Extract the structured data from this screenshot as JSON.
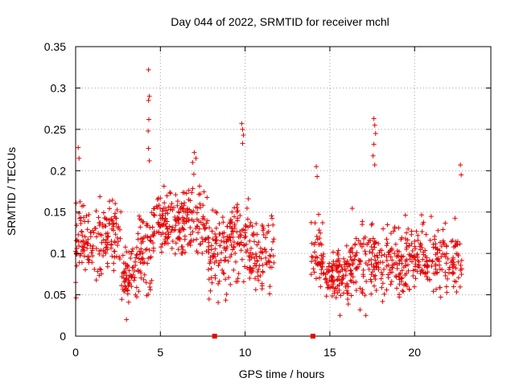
{
  "chart_data": {
    "type": "scatter",
    "title": "Day 044 of 2022, SRMTID for receiver mchl",
    "xlabel": "GPS time / hours",
    "ylabel": "SRMTID / TECUs",
    "xlim": [
      0,
      24.5
    ],
    "ylim": [
      0,
      0.35
    ],
    "x_ticks": [
      0,
      5,
      10,
      15,
      20
    ],
    "x_tick_labels": [
      "0",
      "5",
      "10",
      "15",
      "20"
    ],
    "y_ticks": [
      0,
      0.05,
      0.1,
      0.15,
      0.2,
      0.25,
      0.3,
      0.35
    ],
    "y_tick_labels": [
      "0",
      "0.05",
      "0.1",
      "0.15",
      "0.2",
      "0.25",
      "0.3",
      "0.35"
    ],
    "grid": true,
    "series_color": "#e60000",
    "data_gaps_hours": [
      [
        11.7,
        13.9
      ]
    ],
    "outliers": [
      {
        "x": 4.3,
        "y": 0.322
      },
      {
        "x": 4.35,
        "y": 0.29
      },
      {
        "x": 4.3,
        "y": 0.285
      },
      {
        "x": 4.32,
        "y": 0.262
      },
      {
        "x": 4.28,
        "y": 0.248
      },
      {
        "x": 4.3,
        "y": 0.227
      },
      {
        "x": 4.35,
        "y": 0.212
      },
      {
        "x": 9.8,
        "y": 0.257
      },
      {
        "x": 9.85,
        "y": 0.25
      },
      {
        "x": 9.9,
        "y": 0.243
      },
      {
        "x": 9.85,
        "y": 0.233
      },
      {
        "x": 17.6,
        "y": 0.263
      },
      {
        "x": 17.65,
        "y": 0.255
      },
      {
        "x": 17.7,
        "y": 0.245
      },
      {
        "x": 17.6,
        "y": 0.232
      },
      {
        "x": 17.55,
        "y": 0.218
      },
      {
        "x": 17.65,
        "y": 0.207
      },
      {
        "x": 3.0,
        "y": 0.02
      },
      {
        "x": 15.6,
        "y": 0.025
      },
      {
        "x": 0.15,
        "y": 0.228
      },
      {
        "x": 0.2,
        "y": 0.215
      },
      {
        "x": 14.2,
        "y": 0.205
      },
      {
        "x": 14.25,
        "y": 0.193
      },
      {
        "x": 22.7,
        "y": 0.207
      },
      {
        "x": 22.75,
        "y": 0.195
      },
      {
        "x": 7.0,
        "y": 0.222
      },
      {
        "x": 7.1,
        "y": 0.215
      },
      {
        "x": 6.9,
        "y": 0.21
      }
    ],
    "bands": [
      {
        "x_start": 0.0,
        "x_end": 1.0,
        "center": 0.115,
        "spread": 0.035,
        "count": 70
      },
      {
        "x_start": 1.0,
        "x_end": 2.0,
        "center": 0.12,
        "spread": 0.04,
        "count": 60
      },
      {
        "x_start": 2.0,
        "x_end": 2.7,
        "center": 0.12,
        "spread": 0.035,
        "count": 40
      },
      {
        "x_start": 2.7,
        "x_end": 3.7,
        "center": 0.075,
        "spread": 0.03,
        "count": 70
      },
      {
        "x_start": 3.7,
        "x_end": 4.6,
        "center": 0.105,
        "spread": 0.04,
        "count": 60
      },
      {
        "x_start": 4.6,
        "x_end": 6.2,
        "center": 0.135,
        "spread": 0.03,
        "count": 110
      },
      {
        "x_start": 6.2,
        "x_end": 7.8,
        "center": 0.14,
        "spread": 0.035,
        "count": 100
      },
      {
        "x_start": 7.8,
        "x_end": 9.0,
        "center": 0.1,
        "spread": 0.04,
        "count": 80
      },
      {
        "x_start": 9.0,
        "x_end": 10.2,
        "center": 0.115,
        "spread": 0.04,
        "count": 80
      },
      {
        "x_start": 10.2,
        "x_end": 11.7,
        "center": 0.095,
        "spread": 0.035,
        "count": 90
      },
      {
        "x_start": 13.9,
        "x_end": 14.6,
        "center": 0.1,
        "spread": 0.035,
        "count": 45
      },
      {
        "x_start": 14.6,
        "x_end": 16.3,
        "center": 0.075,
        "spread": 0.025,
        "count": 120
      },
      {
        "x_start": 16.3,
        "x_end": 17.8,
        "center": 0.09,
        "spread": 0.035,
        "count": 90
      },
      {
        "x_start": 17.8,
        "x_end": 19.5,
        "center": 0.09,
        "spread": 0.035,
        "count": 100
      },
      {
        "x_start": 19.5,
        "x_end": 21.0,
        "center": 0.095,
        "spread": 0.035,
        "count": 90
      },
      {
        "x_start": 21.0,
        "x_end": 22.8,
        "center": 0.09,
        "spread": 0.035,
        "count": 100
      }
    ],
    "axis_markers": [
      {
        "x": 8.2
      },
      {
        "x": 14.0
      }
    ]
  }
}
